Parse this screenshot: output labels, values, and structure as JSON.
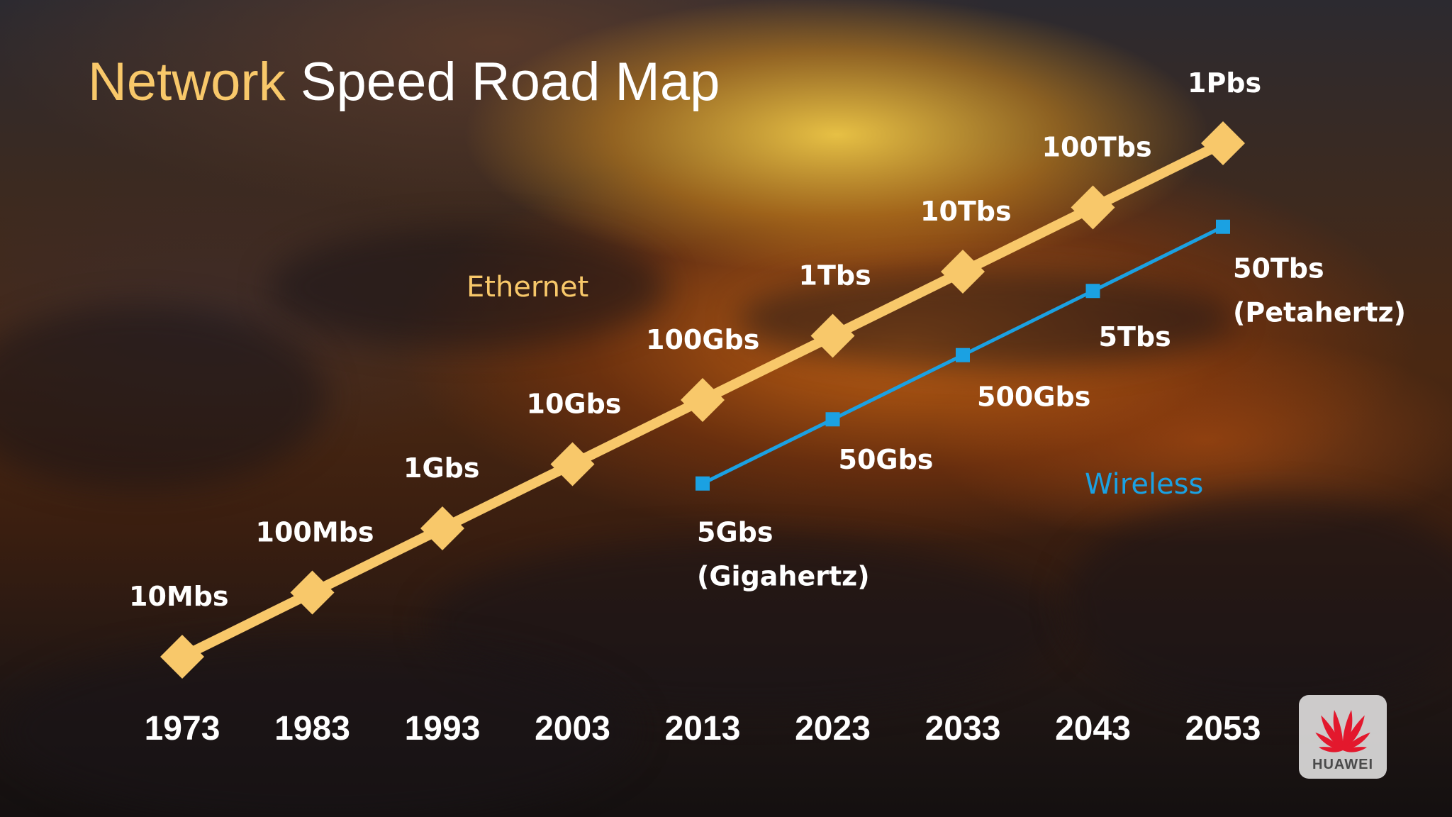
{
  "title": {
    "accent": "Network",
    "rest": " Speed Road Map"
  },
  "logo": {
    "text": "HUAWEI"
  },
  "colors": {
    "ethernet": "#f8c86a",
    "wireless": "#1ba1e2",
    "text": "#ffffff"
  },
  "chart_data": {
    "type": "line",
    "categories": [
      "1973",
      "1983",
      "1993",
      "2003",
      "2013",
      "2023",
      "2033",
      "2043",
      "2053"
    ],
    "series": [
      {
        "name": "Ethernet",
        "color": "#f8c86a",
        "marker": "diamond",
        "values": [
          1e-05,
          0.0001,
          0.001,
          0.01,
          0.1,
          1,
          10,
          100,
          1000
        ],
        "unit": "Tbps",
        "labels": [
          "10Mbs",
          "100Mbs",
          "1Gbs",
          "10Gbs",
          "100Gbs",
          "1Tbs",
          "10Tbs",
          "100Tbs",
          "1Pbs"
        ]
      },
      {
        "name": "Wireless",
        "color": "#1ba1e2",
        "marker": "square",
        "values": [
          null,
          null,
          null,
          null,
          0.005,
          0.05,
          0.5,
          5,
          50
        ],
        "unit": "Tbps",
        "labels": [
          "",
          "",
          "",
          "",
          "5Gbs\n(Gigahertz)",
          "50Gbs",
          "500Gbs",
          "5Tbs",
          "50Tbs\n(Petahertz)"
        ]
      }
    ],
    "yscale": "log",
    "grid": false,
    "legend": "inline labels"
  }
}
